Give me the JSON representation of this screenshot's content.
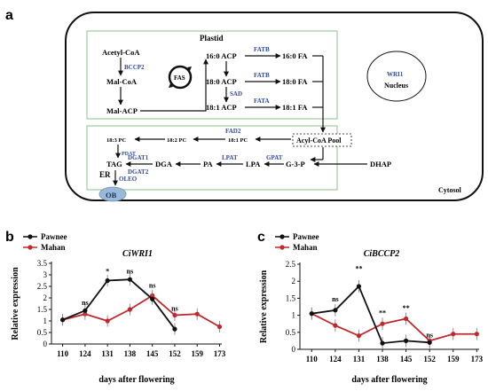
{
  "panel_a": {
    "label": "a",
    "compartments": {
      "plastid": "Plastid",
      "nucleus": "Nucleus",
      "er": "ER",
      "cytosol": "Cytosol"
    },
    "nodes": {
      "acetyl_coa": "Acetyl-CoA",
      "mal_coa": "Mal-CoA",
      "mal_acp": "Mal-ACP",
      "fas": "FAS",
      "acp160": "16:0 ACP",
      "acp180": "18:0 ACP",
      "acp181": "18:1 ACP",
      "fa160": "16:0 FA",
      "fa180": "18:0 FA",
      "fa181": "18:1 FA",
      "wri1": "WRI1",
      "pc183": "18:3 PC",
      "pc182": "18:2 PC",
      "pc181": "18:1 PC",
      "acyl_pool": "Acyl-CoA  Pool",
      "tag": "TAG",
      "dga": "DGA",
      "pa": "PA",
      "lpa": "LPA",
      "g3p": "G-3-P",
      "dhap": "DHAP",
      "ob": "OB"
    },
    "enzymes": {
      "bccp2": "BCCP2",
      "fatb1": "FATB",
      "fatb2": "FATB",
      "sad": "SAD",
      "fata": "FATA",
      "fad2": "FAD2",
      "pdat": "PDAT",
      "dgat1": "DGAT1",
      "dgat2": "DGAT2",
      "lpat": "LPAT",
      "gpat": "GPAT",
      "oleo": "OLEO"
    },
    "enzyme_color": "#2e4a9e"
  },
  "chart_data": [
    {
      "type": "line",
      "panel_label": "b",
      "title": "CiWRI1",
      "xlabel": "days after flowering",
      "ylabel": "Relative expression",
      "x": [
        110,
        124,
        131,
        138,
        145,
        152,
        159,
        173
      ],
      "ylim": [
        0,
        3.5
      ],
      "yticks": [
        "0",
        "0.5",
        "1",
        "1.5",
        "2",
        "2.5",
        "3",
        "3.5"
      ],
      "series": [
        {
          "name": "Pawnee",
          "color": "#111111",
          "points": [
            [
              110,
              1.05
            ],
            [
              124,
              1.45
            ],
            [
              131,
              2.75
            ],
            [
              138,
              2.8
            ],
            [
              145,
              1.95
            ],
            [
              152,
              0.65
            ]
          ]
        },
        {
          "name": "Mahan",
          "color": "#c0282d",
          "points": [
            [
              110,
              1.05
            ],
            [
              124,
              1.3
            ],
            [
              131,
              1.0
            ],
            [
              138,
              1.5
            ],
            [
              145,
              2.1
            ],
            [
              152,
              1.25
            ],
            [
              159,
              1.3
            ],
            [
              173,
              0.75
            ]
          ]
        }
      ],
      "annotations": [
        {
          "text": "ns",
          "x": 124,
          "y": 1.7
        },
        {
          "text": "*",
          "x": 131,
          "y": 3.05
        },
        {
          "text": "ns",
          "x": 138,
          "y": 3.05
        },
        {
          "text": "ns",
          "x": 145,
          "y": 2.45
        },
        {
          "text": "ns",
          "x": 152,
          "y": 1.45
        }
      ]
    },
    {
      "type": "line",
      "panel_label": "c",
      "title": "CiBCCP2",
      "xlabel": "days after flowering",
      "ylabel": "Relative expression",
      "x": [
        110,
        124,
        131,
        138,
        145,
        152,
        159,
        173
      ],
      "ylim": [
        0,
        2.5
      ],
      "yticks": [
        "0",
        "0.5",
        "1",
        "1.5",
        "2",
        "2.5"
      ],
      "series": [
        {
          "name": "Pawnee",
          "color": "#111111",
          "points": [
            [
              110,
              1.05
            ],
            [
              124,
              1.15
            ],
            [
              131,
              1.85
            ],
            [
              138,
              0.18
            ],
            [
              145,
              0.25
            ],
            [
              152,
              0.2
            ]
          ]
        },
        {
          "name": "Mahan",
          "color": "#c0282d",
          "points": [
            [
              110,
              1.05
            ],
            [
              124,
              0.7
            ],
            [
              131,
              0.4
            ],
            [
              138,
              0.75
            ],
            [
              145,
              0.9
            ],
            [
              152,
              0.25
            ],
            [
              159,
              0.45
            ],
            [
              173,
              0.45
            ]
          ]
        }
      ],
      "annotations": [
        {
          "text": "ns",
          "x": 124,
          "y": 1.4
        },
        {
          "text": "**",
          "x": 131,
          "y": 2.3
        },
        {
          "text": "**",
          "x": 138,
          "y": 1.0
        },
        {
          "text": "**",
          "x": 145,
          "y": 1.15
        },
        {
          "text": "ns",
          "x": 152,
          "y": 0.35
        }
      ]
    }
  ]
}
